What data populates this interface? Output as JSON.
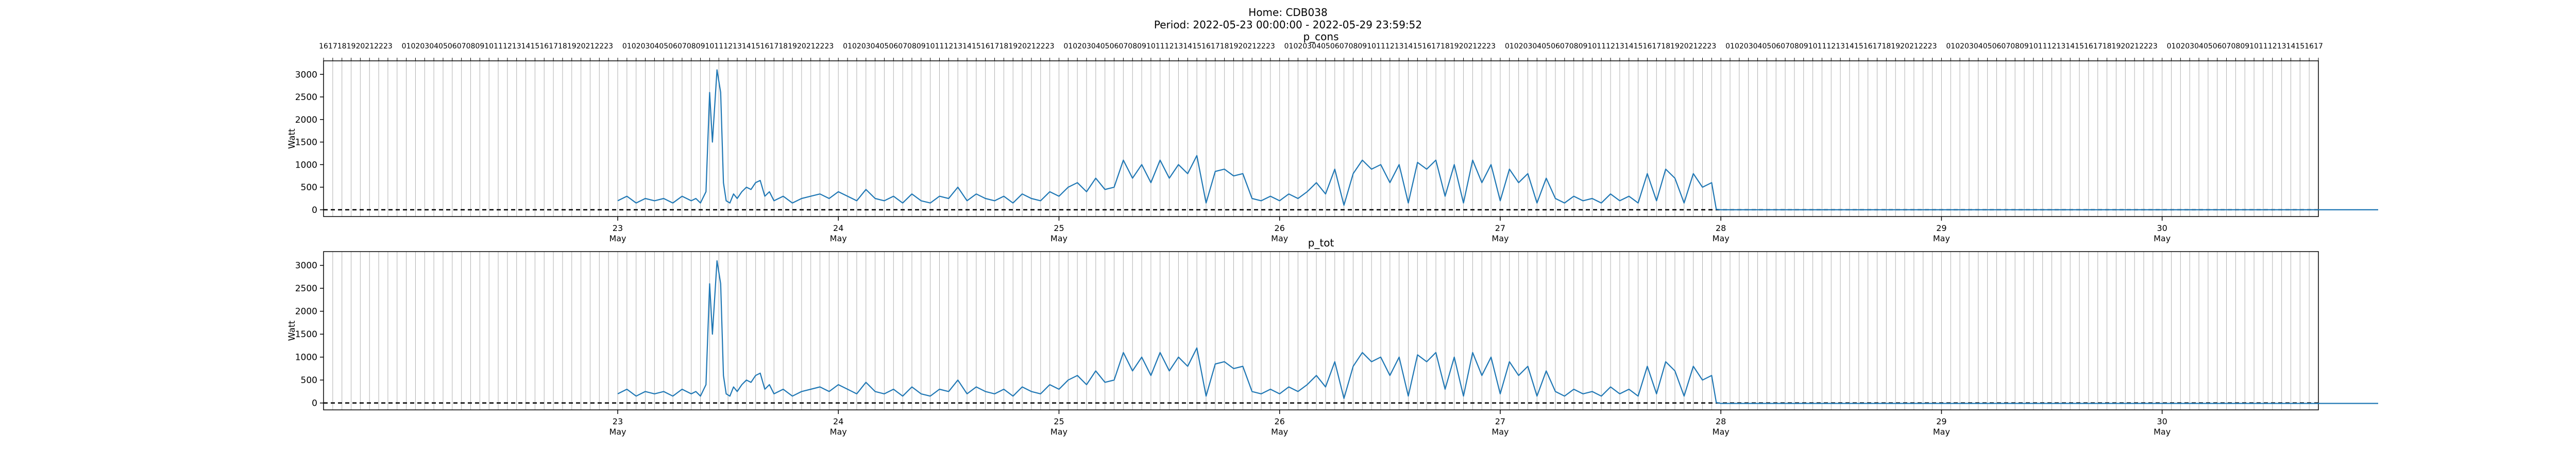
{
  "figure": {
    "title_line1": "Home: CDB038",
    "title_line2": "Period: 2022-05-23 00:00:00 - 2022-05-29 23:59:52"
  },
  "colors": {
    "series": "#1f77b4",
    "hour_grid": "#b0b0b0",
    "zero_line": "#000000"
  },
  "chart_data": [
    {
      "type": "line",
      "title": "p_cons",
      "xlabel": "",
      "ylabel": "Watt",
      "ylim": [
        -150,
        3300
      ],
      "yticks": [
        0,
        500,
        1000,
        1500,
        2000,
        2500,
        3000
      ],
      "xlim": [
        "2022-05-22 16:00",
        "2022-05-30 09:00"
      ],
      "grid": "vertical hourly lines",
      "top_tick_labels": "hour of day (00-23, 00 unlabeled)",
      "bottom_tick_labels": {
        "days": [
          "23",
          "24",
          "25",
          "26",
          "27",
          "28",
          "29",
          "30"
        ],
        "month": "May"
      },
      "reference_line": {
        "y": 0,
        "style": "dashed"
      },
      "x_hours_from_2022_05_23": [
        0,
        1,
        2,
        3,
        4,
        5,
        6,
        7,
        8,
        8.5,
        9,
        9.6,
        10,
        10.3,
        10.8,
        11.2,
        11.5,
        11.8,
        12.2,
        12.6,
        13,
        13.5,
        14,
        14.5,
        15,
        15.5,
        16,
        16.5,
        17,
        18,
        19,
        20,
        21,
        22,
        23,
        24,
        25,
        26,
        27,
        28,
        29,
        30,
        31,
        32,
        33,
        34,
        35,
        36,
        37,
        38,
        39,
        40,
        41,
        42,
        43,
        44,
        45,
        46,
        47,
        48,
        49,
        50,
        51,
        52,
        53,
        54,
        55,
        56,
        57,
        58,
        59,
        60,
        61,
        62,
        63,
        64,
        65,
        66,
        67,
        68,
        69,
        70,
        71,
        72,
        73,
        74,
        75,
        76,
        77,
        78,
        79,
        80,
        81,
        82,
        83,
        84,
        85,
        86,
        87,
        88,
        89,
        90,
        91,
        92,
        93,
        94,
        95,
        96,
        97,
        98,
        99,
        100,
        101,
        102,
        103,
        104,
        105,
        106,
        107,
        108,
        109,
        110,
        111,
        112,
        113,
        114,
        115,
        116,
        117,
        118,
        119,
        119.5,
        120,
        144,
        168,
        191.5
      ],
      "y": [
        200,
        300,
        150,
        250,
        200,
        250,
        150,
        300,
        200,
        250,
        150,
        400,
        2600,
        1500,
        3100,
        2600,
        600,
        200,
        150,
        350,
        250,
        400,
        500,
        450,
        600,
        650,
        300,
        400,
        200,
        300,
        150,
        250,
        300,
        350,
        250,
        400,
        300,
        200,
        450,
        250,
        200,
        300,
        150,
        350,
        200,
        150,
        300,
        250,
        500,
        200,
        350,
        250,
        200,
        300,
        150,
        350,
        250,
        200,
        400,
        300,
        500,
        600,
        400,
        700,
        450,
        500,
        1100,
        700,
        1000,
        600,
        1100,
        700,
        1000,
        800,
        1200,
        150,
        850,
        900,
        750,
        800,
        250,
        200,
        300,
        200,
        350,
        250,
        400,
        600,
        350,
        900,
        100,
        800,
        1100,
        900,
        1000,
        600,
        1000,
        150,
        1050,
        900,
        1100,
        300,
        1000,
        150,
        1100,
        600,
        1000,
        200,
        900,
        600,
        800,
        150,
        700,
        250,
        150,
        300,
        200,
        250,
        150,
        350,
        200,
        300,
        150,
        800,
        200,
        900,
        700,
        150,
        800,
        500,
        600,
        10,
        0,
        0,
        0,
        0
      ]
    },
    {
      "type": "line",
      "title": "p_tot",
      "xlabel": "",
      "ylabel": "Watt",
      "ylim": [
        -150,
        3300
      ],
      "yticks": [
        0,
        500,
        1000,
        1500,
        2000,
        2500,
        3000
      ],
      "xlim": [
        "2022-05-22 16:00",
        "2022-05-30 09:00"
      ],
      "grid": "vertical hourly lines",
      "bottom_tick_labels": {
        "days": [
          "23",
          "24",
          "25",
          "26",
          "27",
          "28",
          "29",
          "30"
        ],
        "month": "May"
      },
      "reference_line": {
        "y": 0,
        "style": "dashed"
      },
      "x_hours_from_2022_05_23": [
        0,
        1,
        2,
        3,
        4,
        5,
        6,
        7,
        8,
        8.5,
        9,
        9.6,
        10,
        10.3,
        10.8,
        11.2,
        11.5,
        11.8,
        12.2,
        12.6,
        13,
        13.5,
        14,
        14.5,
        15,
        15.5,
        16,
        16.5,
        17,
        18,
        19,
        20,
        21,
        22,
        23,
        24,
        25,
        26,
        27,
        28,
        29,
        30,
        31,
        32,
        33,
        34,
        35,
        36,
        37,
        38,
        39,
        40,
        41,
        42,
        43,
        44,
        45,
        46,
        47,
        48,
        49,
        50,
        51,
        52,
        53,
        54,
        55,
        56,
        57,
        58,
        59,
        60,
        61,
        62,
        63,
        64,
        65,
        66,
        67,
        68,
        69,
        70,
        71,
        72,
        73,
        74,
        75,
        76,
        77,
        78,
        79,
        80,
        81,
        82,
        83,
        84,
        85,
        86,
        87,
        88,
        89,
        90,
        91,
        92,
        93,
        94,
        95,
        96,
        97,
        98,
        99,
        100,
        101,
        102,
        103,
        104,
        105,
        106,
        107,
        108,
        109,
        110,
        111,
        112,
        113,
        114,
        115,
        116,
        117,
        118,
        119,
        119.5,
        120,
        144,
        168,
        191.5
      ],
      "y": [
        200,
        300,
        150,
        250,
        200,
        250,
        150,
        300,
        200,
        250,
        150,
        400,
        2600,
        1500,
        3100,
        2600,
        600,
        200,
        150,
        350,
        250,
        400,
        500,
        450,
        600,
        650,
        300,
        400,
        200,
        300,
        150,
        250,
        300,
        350,
        250,
        400,
        300,
        200,
        450,
        250,
        200,
        300,
        150,
        350,
        200,
        150,
        300,
        250,
        500,
        200,
        350,
        250,
        200,
        300,
        150,
        350,
        250,
        200,
        400,
        300,
        500,
        600,
        400,
        700,
        450,
        500,
        1100,
        700,
        1000,
        600,
        1100,
        700,
        1000,
        800,
        1200,
        150,
        850,
        900,
        750,
        800,
        250,
        200,
        300,
        200,
        350,
        250,
        400,
        600,
        350,
        900,
        100,
        800,
        1100,
        900,
        1000,
        600,
        1000,
        150,
        1050,
        900,
        1100,
        300,
        1000,
        150,
        1100,
        600,
        1000,
        200,
        900,
        600,
        800,
        150,
        700,
        250,
        150,
        300,
        200,
        250,
        150,
        350,
        200,
        300,
        150,
        800,
        200,
        900,
        700,
        150,
        800,
        500,
        600,
        10,
        -10,
        -10,
        -10,
        -10
      ]
    }
  ]
}
